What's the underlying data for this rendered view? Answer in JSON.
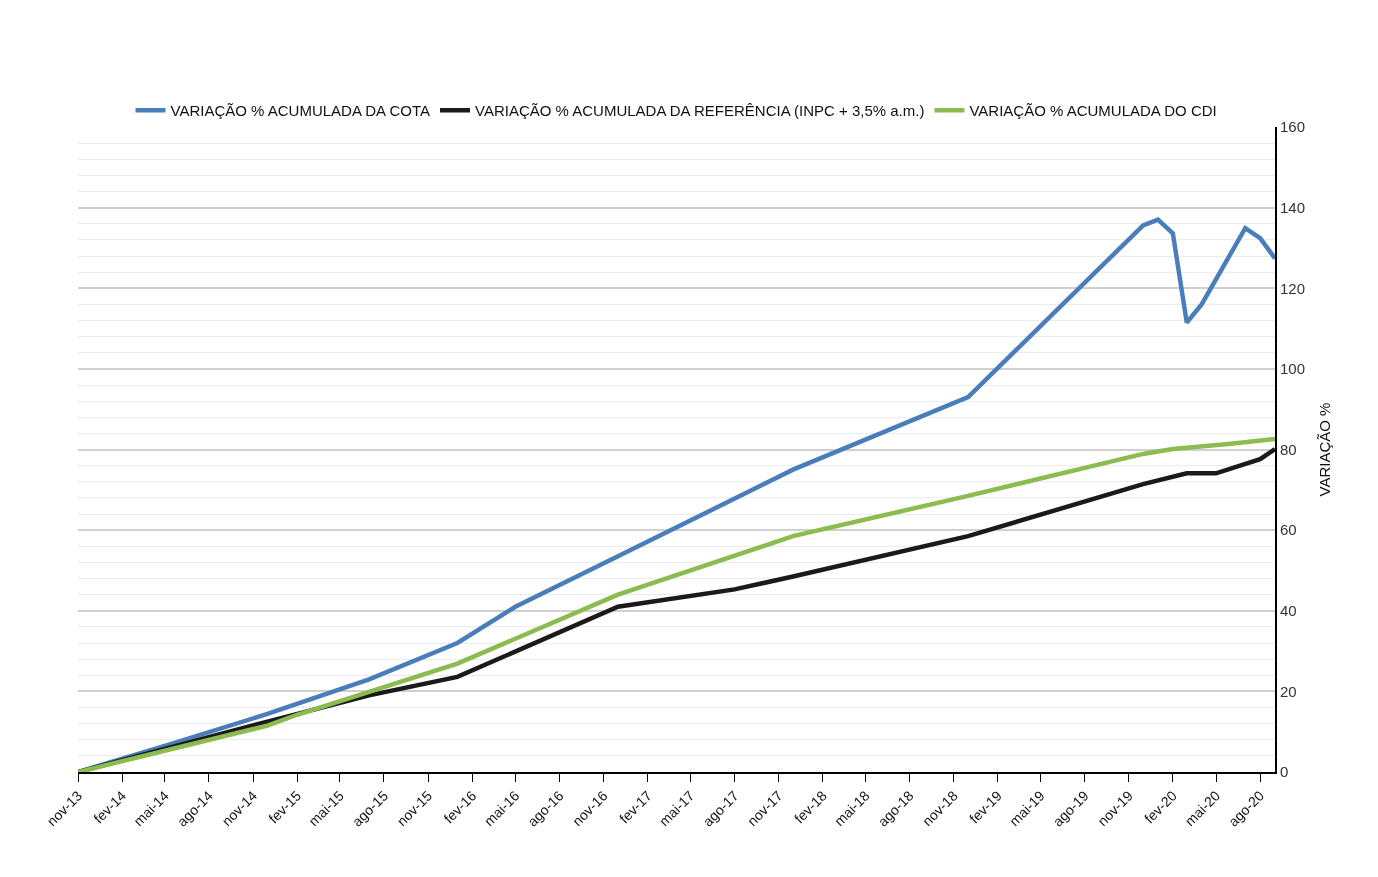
{
  "chart_data": {
    "type": "line",
    "ylabel": "VARIAÇÃO %",
    "legend": "top",
    "grid": "y",
    "line_style": "solid",
    "xlim": [
      "2013-11",
      "2020-09"
    ],
    "xticks": [
      {
        "value": "2013-11",
        "label": "nov-13"
      },
      {
        "value": "2014-02",
        "label": "fev-14"
      },
      {
        "value": "2014-05",
        "label": "mai-14"
      },
      {
        "value": "2014-08",
        "label": "ago-14"
      },
      {
        "value": "2014-11",
        "label": "nov-14"
      },
      {
        "value": "2015-02",
        "label": "fev-15"
      },
      {
        "value": "2015-05",
        "label": "mai-15"
      },
      {
        "value": "2015-08",
        "label": "ago-15"
      },
      {
        "value": "2015-11",
        "label": "nov-15"
      },
      {
        "value": "2016-02",
        "label": "fev-16"
      },
      {
        "value": "2016-05",
        "label": "mai-16"
      },
      {
        "value": "2016-08",
        "label": "ago-16"
      },
      {
        "value": "2016-11",
        "label": "nov-16"
      },
      {
        "value": "2017-02",
        "label": "fev-17"
      },
      {
        "value": "2017-05",
        "label": "mai-17"
      },
      {
        "value": "2017-08",
        "label": "ago-17"
      },
      {
        "value": "2017-11",
        "label": "nov-17"
      },
      {
        "value": "2018-02",
        "label": "fev-18"
      },
      {
        "value": "2018-05",
        "label": "mai-18"
      },
      {
        "value": "2018-08",
        "label": "ago-18"
      },
      {
        "value": "2018-11",
        "label": "nov-18"
      },
      {
        "value": "2019-02",
        "label": "fev-19"
      },
      {
        "value": "2019-05",
        "label": "mai-19"
      },
      {
        "value": "2019-08",
        "label": "ago-19"
      },
      {
        "value": "2019-11",
        "label": "nov-19"
      },
      {
        "value": "2020-02",
        "label": "fev-20"
      },
      {
        "value": "2020-05",
        "label": "mai-20"
      },
      {
        "value": "2020-08",
        "label": "ago-20"
      }
    ],
    "ylim": [
      0,
      160
    ],
    "yticks": [
      0,
      {
        "value": 4,
        "label": null
      },
      {
        "value": 8,
        "label": null
      },
      {
        "value": 12,
        "label": null
      },
      {
        "value": 16,
        "label": null
      },
      20,
      {
        "value": 24,
        "label": null
      },
      {
        "value": 28,
        "label": null
      },
      {
        "value": 32,
        "label": null
      },
      {
        "value": 36,
        "label": null
      },
      40,
      {
        "value": 44,
        "label": null
      },
      {
        "value": 48,
        "label": null
      },
      {
        "value": 52,
        "label": null
      },
      {
        "value": 56,
        "label": null
      },
      60,
      {
        "value": 64,
        "label": null
      },
      {
        "value": 68,
        "label": null
      },
      {
        "value": 72,
        "label": null
      },
      {
        "value": 76,
        "label": null
      },
      80,
      {
        "value": 84,
        "label": null
      },
      {
        "value": 88,
        "label": null
      },
      {
        "value": 92,
        "label": null
      },
      {
        "value": 96,
        "label": null
      },
      100,
      {
        "value": 104,
        "label": null
      },
      {
        "value": 108,
        "label": null
      },
      {
        "value": 112,
        "label": null
      },
      {
        "value": 116,
        "label": null
      },
      120,
      {
        "value": 124,
        "label": null
      },
      {
        "value": 128,
        "label": null
      },
      {
        "value": 132,
        "label": null
      },
      {
        "value": 136,
        "label": null
      },
      140,
      {
        "value": 144,
        "label": null
      },
      {
        "value": 148,
        "label": null
      },
      {
        "value": 152,
        "label": null
      },
      {
        "value": 156,
        "label": null
      },
      160
    ],
    "series": [
      {
        "name": "VARIAÇÃO % ACUMULADA DA COTA",
        "color": "#4a7ebb",
        "x": [
          "2013-11",
          "2014-05",
          "2014-12",
          "2015-07",
          "2016-01",
          "2016-05",
          "2016-12",
          "2017-12",
          "2018-12",
          "2019-12",
          "2020-01",
          "2020-02",
          "2020-03",
          "2020-04",
          "2020-07",
          "2020-08",
          "2020-09"
        ],
        "values": [
          0,
          6.5,
          14.4,
          23,
          32,
          41,
          53.5,
          75,
          93,
          135.6,
          137,
          133.6,
          111.5,
          116,
          134.9,
          132.4,
          127.4
        ]
      },
      {
        "name": "VARIAÇÃO % ACUMULADA DA REFERÊNCIA (INPC + 3,5% a.m.)",
        "color": "#1a1a1a",
        "x": [
          "2013-11",
          "2014-12",
          "2015-07",
          "2016-01",
          "2016-12",
          "2017-08",
          "2017-12",
          "2018-12",
          "2019-12",
          "2020-03",
          "2020-05",
          "2020-08",
          "2020-09"
        ],
        "values": [
          0,
          12.5,
          19,
          23.6,
          41,
          45.3,
          48.5,
          58.5,
          71.4,
          74.1,
          74.1,
          77.6,
          80.1
        ]
      },
      {
        "name": "VARIAÇÃO % ACUMULADA DO CDI",
        "color": "#8cbb4f",
        "x": [
          "2013-11",
          "2014-12",
          "2015-02",
          "2016-01",
          "2016-12",
          "2017-12",
          "2018-12",
          "2019-12",
          "2020-02",
          "2020-06",
          "2020-09"
        ],
        "values": [
          0,
          11.5,
          14.2,
          26.9,
          44,
          58.5,
          68.5,
          78.9,
          80.1,
          81.4,
          82.6
        ]
      }
    ]
  }
}
